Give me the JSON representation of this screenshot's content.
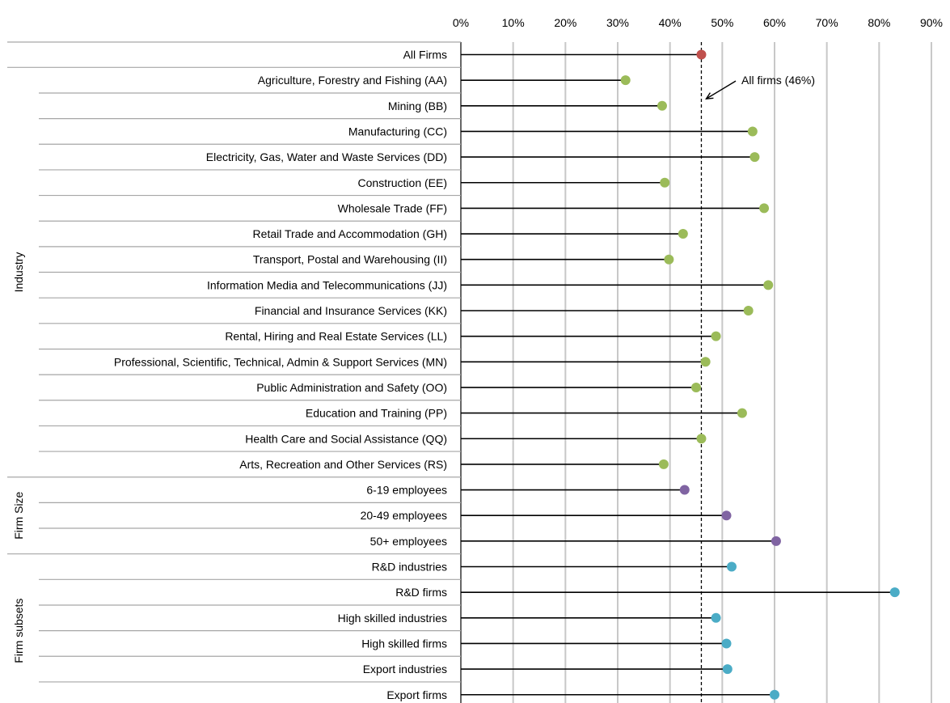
{
  "chart_data": {
    "type": "dot",
    "title": "",
    "xlabel": "",
    "ylabel": "",
    "xlim": [
      0,
      0.9
    ],
    "x_ticks": [
      0,
      0.1,
      0.2,
      0.3,
      0.4,
      0.5,
      0.6,
      0.7,
      0.8,
      0.9
    ],
    "x_tick_labels": [
      "0%",
      "10%",
      "20%",
      "30%",
      "40%",
      "50%",
      "60%",
      "70%",
      "80%",
      "90%"
    ],
    "grid": true,
    "groups": [
      {
        "name": "",
        "color": "#c0504d",
        "items": [
          {
            "label": "All Firms",
            "value": 0.46
          }
        ]
      },
      {
        "name": "Industry",
        "color": "#9bbb59",
        "items": [
          {
            "label": "Agriculture, Forestry and Fishing (AA)",
            "value": 0.315
          },
          {
            "label": "Mining (BB)",
            "value": 0.385
          },
          {
            "label": "Manufacturing (CC)",
            "value": 0.558
          },
          {
            "label": "Electricity, Gas, Water and Waste Services (DD)",
            "value": 0.562
          },
          {
            "label": "Construction (EE)",
            "value": 0.39
          },
          {
            "label": "Wholesale Trade (FF)",
            "value": 0.58
          },
          {
            "label": "Retail Trade and Accommodation (GH)",
            "value": 0.425
          },
          {
            "label": "Transport, Postal and Warehousing (II)",
            "value": 0.398
          },
          {
            "label": "Information Media and Telecommunications (JJ)",
            "value": 0.588
          },
          {
            "label": "Financial and Insurance Services (KK)",
            "value": 0.55
          },
          {
            "label": "Rental, Hiring and Real Estate Services (LL)",
            "value": 0.488
          },
          {
            "label": "Professional, Scientific, Technical, Admin & Support Services (MN)",
            "value": 0.468
          },
          {
            "label": "Public Administration and Safety (OO)",
            "value": 0.45
          },
          {
            "label": "Education and Training (PP)",
            "value": 0.538
          },
          {
            "label": "Health Care and Social Assistance (QQ)",
            "value": 0.46
          },
          {
            "label": "Arts, Recreation and Other Services (RS)",
            "value": 0.388
          }
        ]
      },
      {
        "name": "Firm Size",
        "color": "#8064a2",
        "items": [
          {
            "label": "6-19 employees",
            "value": 0.428
          },
          {
            "label": "20-49 employees",
            "value": 0.508
          },
          {
            "label": "50+ employees",
            "value": 0.603
          }
        ]
      },
      {
        "name": "Firm subsets",
        "color": "#4bacc6",
        "items": [
          {
            "label": "R&D industries",
            "value": 0.518
          },
          {
            "label": "R&D firms",
            "value": 0.83
          },
          {
            "label": "High skilled industries",
            "value": 0.488
          },
          {
            "label": "High skilled firms",
            "value": 0.508
          },
          {
            "label": "Export industries",
            "value": 0.51
          },
          {
            "label": "Export firms",
            "value": 0.6
          }
        ]
      }
    ],
    "reference_line": {
      "value": 0.46,
      "style": "dashed"
    },
    "annotation": {
      "text": "All firms (46%)"
    }
  }
}
